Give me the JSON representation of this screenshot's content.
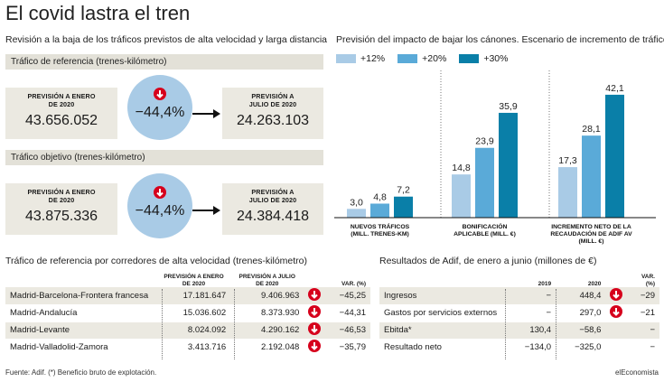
{
  "title": "El covid lastra el tren",
  "left": {
    "subtitle": "Revisión a la baja de los tráficos previstos de alta velocidad y larga distancia",
    "ref": {
      "header": "Tráfico de referencia (trenes-kilómetro)",
      "left_label": "PREVISIÓN A ENERO DE 2020",
      "left_value": "43.656.052",
      "pct": "−44,4%",
      "right_label": "PREVISIÓN A JULIO DE 2020",
      "right_value": "24.263.103"
    },
    "obj": {
      "header": "Tráfico objetivo (trenes-kilómetro)",
      "left_label": "PREVISIÓN A ENERO DE 2020",
      "left_value": "43.875.336",
      "pct": "−44,4%",
      "right_label": "PREVISIÓN A JULIO DE 2020",
      "right_value": "24.384.418"
    }
  },
  "chart_data": {
    "type": "bar",
    "title": "Previsión del impacto de bajar los cánones. Escenario de incremento de tráfico",
    "categories": [
      "NUEVOS TRÁFICOS (MILL. TRENES-KM)",
      "BONIFICACIÓN APLICABLE (MILL. €)",
      "INCREMENTO NETO DE LA RECAUDACIÓN DE ADIF AV (MILL. €)"
    ],
    "category_lines": [
      [
        "NUEVOS TRÁFICOS",
        "(MILL. TRENES-KM)"
      ],
      [
        "BONIFICACIÓN",
        "APLICABLE (MILL. €)"
      ],
      [
        "INCREMENTO NETO DE LA",
        "RECAUDACIÓN DE ADIF AV",
        "(MILL. €)"
      ]
    ],
    "series": [
      {
        "name": "+12%",
        "color": "#a9cbe6",
        "values": [
          3.0,
          14.8,
          17.3
        ],
        "labels": [
          "3,0",
          "14,8",
          "17,3"
        ]
      },
      {
        "name": "+20%",
        "color": "#5aaad8",
        "values": [
          4.8,
          23.9,
          28.1
        ],
        "labels": [
          "4,8",
          "23,9",
          "28,1"
        ]
      },
      {
        "name": "+30%",
        "color": "#0a7fa8",
        "values": [
          7.2,
          35.9,
          42.1
        ],
        "labels": [
          "7,2",
          "35,9",
          "42,1"
        ]
      }
    ],
    "ylim": [
      0,
      43
    ],
    "legend": "top-left"
  },
  "corridors": {
    "title": "Tráfico de referencia por corredores de alta velocidad (trenes-kilómetro)",
    "headers": [
      "PREVISIÓN A ENERO DE 2020",
      "PREVISIÓN A JULIO DE 2020",
      "VAR. (%)"
    ],
    "rows": [
      {
        "name": "Madrid-Barcelona-Frontera francesa",
        "jan": "17.181.647",
        "jul": "9.406.963",
        "var": "−45,25"
      },
      {
        "name": "Madrid-Andalucía",
        "jan": "15.036.602",
        "jul": "8.373.930",
        "var": "−44,31"
      },
      {
        "name": "Madrid-Levante",
        "jan": "8.024.092",
        "jul": "4.290.162",
        "var": "−46,53"
      },
      {
        "name": "Madrid-Valladolid-Zamora",
        "jan": "3.413.716",
        "jul": "2.192.048",
        "var": "−35,79"
      }
    ]
  },
  "adif": {
    "title": "Resultados de Adif, de enero a junio (millones de €)",
    "headers": [
      "2019",
      "2020",
      "VAR. (%)"
    ],
    "rows": [
      {
        "name": "Ingresos",
        "y2019": "−",
        "y2020": "448,4",
        "var": "−29",
        "down": true
      },
      {
        "name": "Gastos por servicios externos",
        "y2019": "−",
        "y2020": "297,0",
        "var": "−21",
        "down": true
      },
      {
        "name": "Ebitda*",
        "y2019": "130,4",
        "y2020": "−58,6",
        "var": "−",
        "down": false
      },
      {
        "name": "Resultado neto",
        "y2019": "−134,0",
        "y2020": "−325,0",
        "var": "−",
        "down": false
      }
    ]
  },
  "footer": {
    "source": "Fuente: Adif. (*) Beneficio bruto de explotación.",
    "brand": "elEconomista"
  }
}
